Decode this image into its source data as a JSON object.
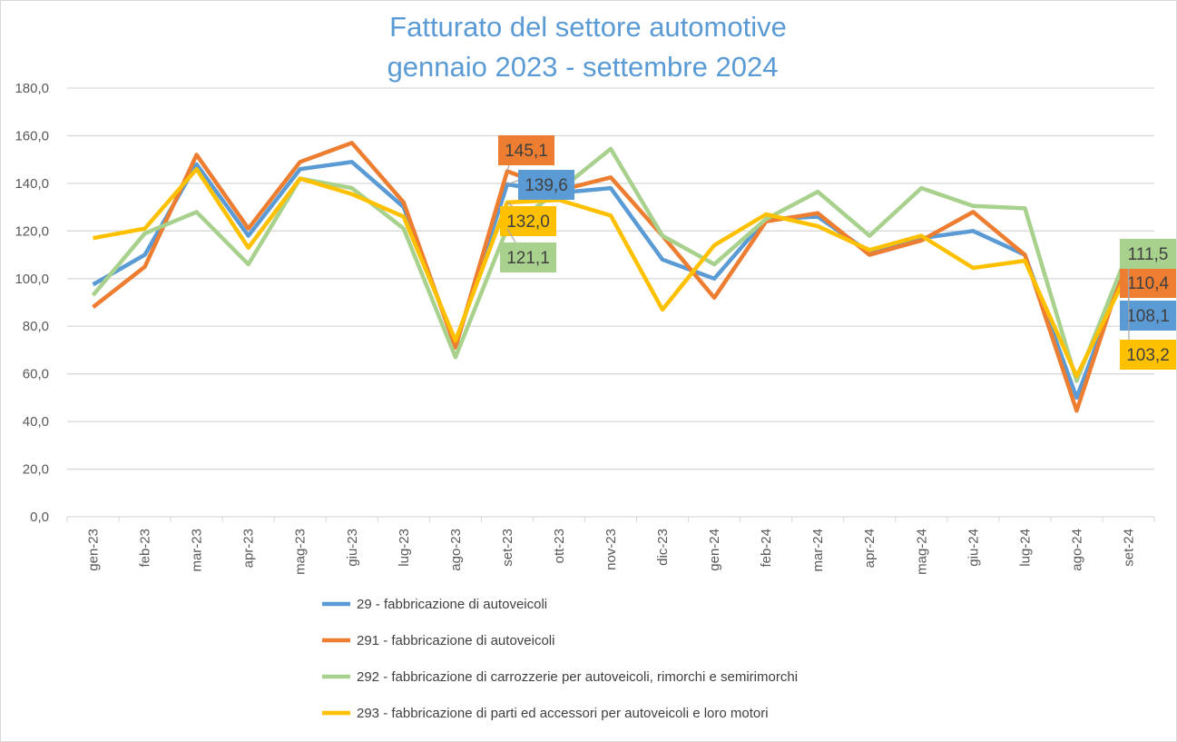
{
  "chart_data": {
    "type": "line",
    "title": [
      "Fatturato del settore automotive",
      "gennaio 2023 - settembre 2024"
    ],
    "xlabel": "",
    "ylabel": "",
    "ylim": [
      0,
      180
    ],
    "yticks": [
      "0,0",
      "20,0",
      "40,0",
      "60,0",
      "80,0",
      "100,0",
      "120,0",
      "140,0",
      "160,0",
      "180,0"
    ],
    "grid": true,
    "legend_position": "bottom",
    "categories": [
      "gen-23",
      "feb-23",
      "mar-23",
      "apr-23",
      "mag-23",
      "giu-23",
      "lug-23",
      "ago-23",
      "set-23",
      "ott-23",
      "nov-23",
      "dic-23",
      "gen-24",
      "feb-24",
      "mar-24",
      "apr-24",
      "mag-24",
      "giu-24",
      "lug-24",
      "ago-24",
      "set-24"
    ],
    "series": [
      {
        "name": "29 - fabbricazione di autoveicoli",
        "color": "#5b9bd5",
        "values": [
          97.5,
          110,
          148,
          118,
          146,
          149,
          130,
          72,
          139.6,
          136,
          138,
          108,
          100,
          125,
          126,
          111,
          117,
          120,
          110,
          50,
          108.1
        ],
        "data_labels": {
          "set-23": "139,6",
          "set-24": "108,1"
        }
      },
      {
        "name": "291 - fabbricazione di autoveicoli",
        "color": "#ed7d31",
        "values": [
          88,
          105,
          152,
          121,
          149,
          157,
          132,
          71,
          145.1,
          137,
          142.5,
          118,
          92,
          124,
          127.5,
          110,
          116,
          128,
          110,
          44.5,
          110.4
        ],
        "data_labels": {
          "set-23": "145,1",
          "set-24": "110,4"
        }
      },
      {
        "name": "292 - fabbricazione di carrozzerie per autoveicoli, rimorchi e semirimorchi",
        "color": "#a9d18e",
        "values": [
          93,
          119,
          128,
          106,
          142,
          138,
          121,
          67,
          121.1,
          137,
          154.5,
          118,
          106,
          125,
          136.5,
          118,
          138,
          130.5,
          129.5,
          57,
          111.5
        ],
        "data_labels": {
          "set-23": "121,1",
          "set-24": "111,5"
        }
      },
      {
        "name": "293 - fabbricazione di parti ed accessori per autoveicoli e loro motori",
        "color": "#ffc000",
        "values": [
          117,
          121,
          146,
          113,
          142,
          135.5,
          126,
          74,
          132.0,
          133,
          126.5,
          87,
          114,
          127,
          122,
          112,
          118,
          104.5,
          107.5,
          59,
          103.2
        ],
        "data_labels": {
          "set-23": "132,0",
          "set-24": "103,2"
        }
      }
    ]
  }
}
